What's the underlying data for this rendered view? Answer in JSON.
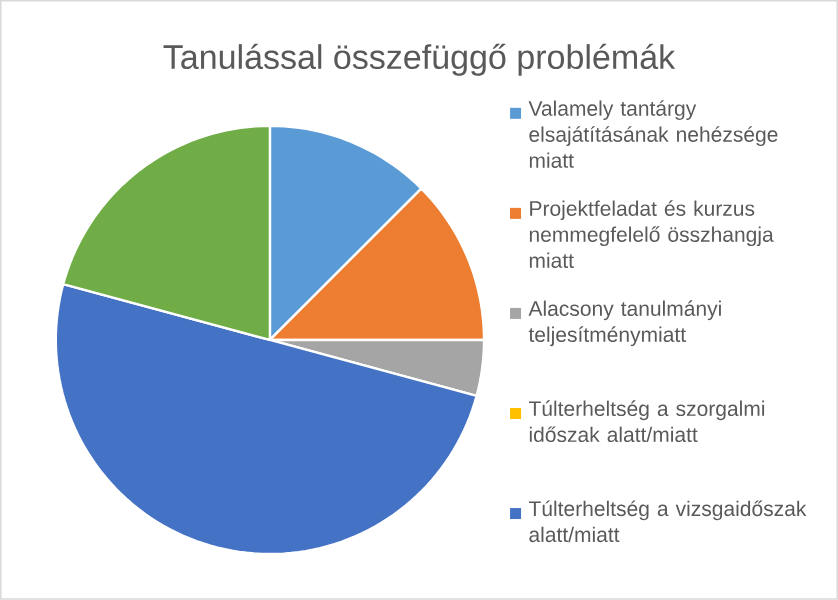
{
  "chart_data": {
    "type": "pie",
    "title": "Tanulással összefüggő problémák",
    "categories": [
      "Valamely tantárgy elsajátításának nehézsége miatt",
      "Projektfeladat és kurzus nemmegfelelő összhangja miatt",
      "Alacsony tanulmányi teljesítménymiatt",
      "Túlterheltség a szorgalmi időszak alatt/miatt",
      "Túlterheltség a vizsgaidőszak alatt/miatt",
      null
    ],
    "values": [
      12.5,
      12.5,
      4.2,
      0,
      50,
      20.8
    ],
    "colors": [
      "#5b9bd5",
      "#ed7d31",
      "#a5a5a5",
      "#ffc000",
      "#4472c4",
      "#70ad47"
    ],
    "legend": "right"
  }
}
